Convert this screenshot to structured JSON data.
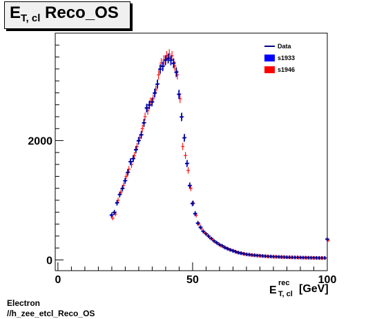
{
  "title": {
    "main": "E",
    "sub": "T, cl",
    "rest": "Reco_OS"
  },
  "footer": {
    "line1": "Electron",
    "line2": "//h_zee_etcl_Reco_OS"
  },
  "chart_data": {
    "type": "scatter",
    "title": "E_T, cl Reco_OS",
    "xlabel": {
      "main": "E",
      "sup": "rec",
      "sub": "T, cl",
      "unit": "[GeV]"
    },
    "ylabel": "",
    "xlim": [
      -1,
      100
    ],
    "ylim": [
      -180,
      3800
    ],
    "xticks": [
      0,
      50,
      100
    ],
    "yticks": [
      0,
      2000
    ],
    "grid": false,
    "legend_position": "top-right",
    "legend": [
      {
        "name": "Data",
        "color": "#000080",
        "marker": "line"
      },
      {
        "name": "s1933",
        "color": "#0000ff",
        "marker": "box"
      },
      {
        "name": "s1946",
        "color": "#ff0000",
        "marker": "box"
      }
    ],
    "x": [
      20,
      21,
      22,
      23,
      24,
      25,
      26,
      27,
      28,
      29,
      30,
      31,
      32,
      33,
      34,
      35,
      36,
      37,
      38,
      39,
      40,
      41,
      42,
      43,
      44,
      45,
      46,
      47,
      48,
      49,
      50,
      51,
      52,
      53,
      54,
      55,
      56,
      57,
      58,
      59,
      60,
      61,
      62,
      63,
      64,
      65,
      66,
      67,
      68,
      69,
      70,
      71,
      72,
      73,
      74,
      75,
      76,
      77,
      78,
      79,
      80,
      81,
      82,
      83,
      84,
      85,
      86,
      87,
      88,
      89,
      90,
      91,
      92,
      93,
      94,
      95,
      96,
      97,
      98,
      99,
      100
    ],
    "series": [
      {
        "name": "Data",
        "color": "#000080",
        "values": [
          760,
          800,
          960,
          1100,
          1200,
          1330,
          1470,
          1650,
          1700,
          1850,
          2000,
          2100,
          2300,
          2550,
          2600,
          2650,
          2800,
          2950,
          3200,
          3250,
          3350,
          3380,
          3350,
          3300,
          3150,
          2780,
          2400,
          2050,
          1620,
          1250,
          950,
          780,
          620,
          550,
          480,
          440,
          400,
          360,
          320,
          290,
          260,
          240,
          210,
          190,
          170,
          155,
          140,
          125,
          115,
          105,
          95,
          90,
          85,
          80,
          75,
          72,
          68,
          64,
          60,
          58,
          56,
          54,
          52,
          50,
          48,
          46,
          45,
          44,
          43,
          42,
          41,
          40,
          39,
          38,
          37,
          36,
          35,
          34,
          34,
          34,
          350
        ]
      },
      {
        "name": "s1933",
        "color": "#0000ff",
        "values": [
          740,
          790,
          950,
          1090,
          1190,
          1320,
          1460,
          1640,
          1690,
          1840,
          1990,
          2090,
          2290,
          2540,
          2590,
          2640,
          2790,
          2940,
          3190,
          3240,
          3340,
          3370,
          3340,
          3290,
          3140,
          2770,
          2390,
          2040,
          1610,
          1240,
          940,
          770,
          610,
          540,
          475,
          435,
          395,
          355,
          315,
          285,
          255,
          235,
          205,
          185,
          165,
          150,
          135,
          120,
          110,
          100,
          92,
          88,
          82,
          78,
          73,
          70,
          66,
          62,
          59,
          57,
          55,
          53,
          51,
          49,
          47,
          45,
          44,
          43,
          42,
          41,
          40,
          39,
          38,
          37,
          36,
          35,
          34,
          33,
          33,
          33,
          345
        ]
      },
      {
        "name": "s1946",
        "color": "#ff0000",
        "values": [
          700,
          770,
          1000,
          1130,
          1250,
          1400,
          1520,
          1600,
          1750,
          1900,
          2050,
          2200,
          2400,
          2500,
          2650,
          2700,
          2850,
          3100,
          3300,
          3350,
          3420,
          3450,
          3420,
          3250,
          3100,
          2700,
          1900,
          1750,
          1500,
          1200,
          950,
          750,
          600,
          520,
          460,
          420,
          370,
          340,
          300,
          270,
          240,
          220,
          200,
          180,
          165,
          150,
          130,
          118,
          108,
          98,
          90,
          84,
          78,
          74,
          70,
          66,
          62,
          58,
          56,
          54,
          52,
          50,
          48,
          46,
          44,
          42,
          41,
          40,
          39,
          38,
          37,
          36,
          35,
          34,
          33,
          32,
          31,
          30,
          30,
          30,
          330
        ]
      }
    ]
  }
}
